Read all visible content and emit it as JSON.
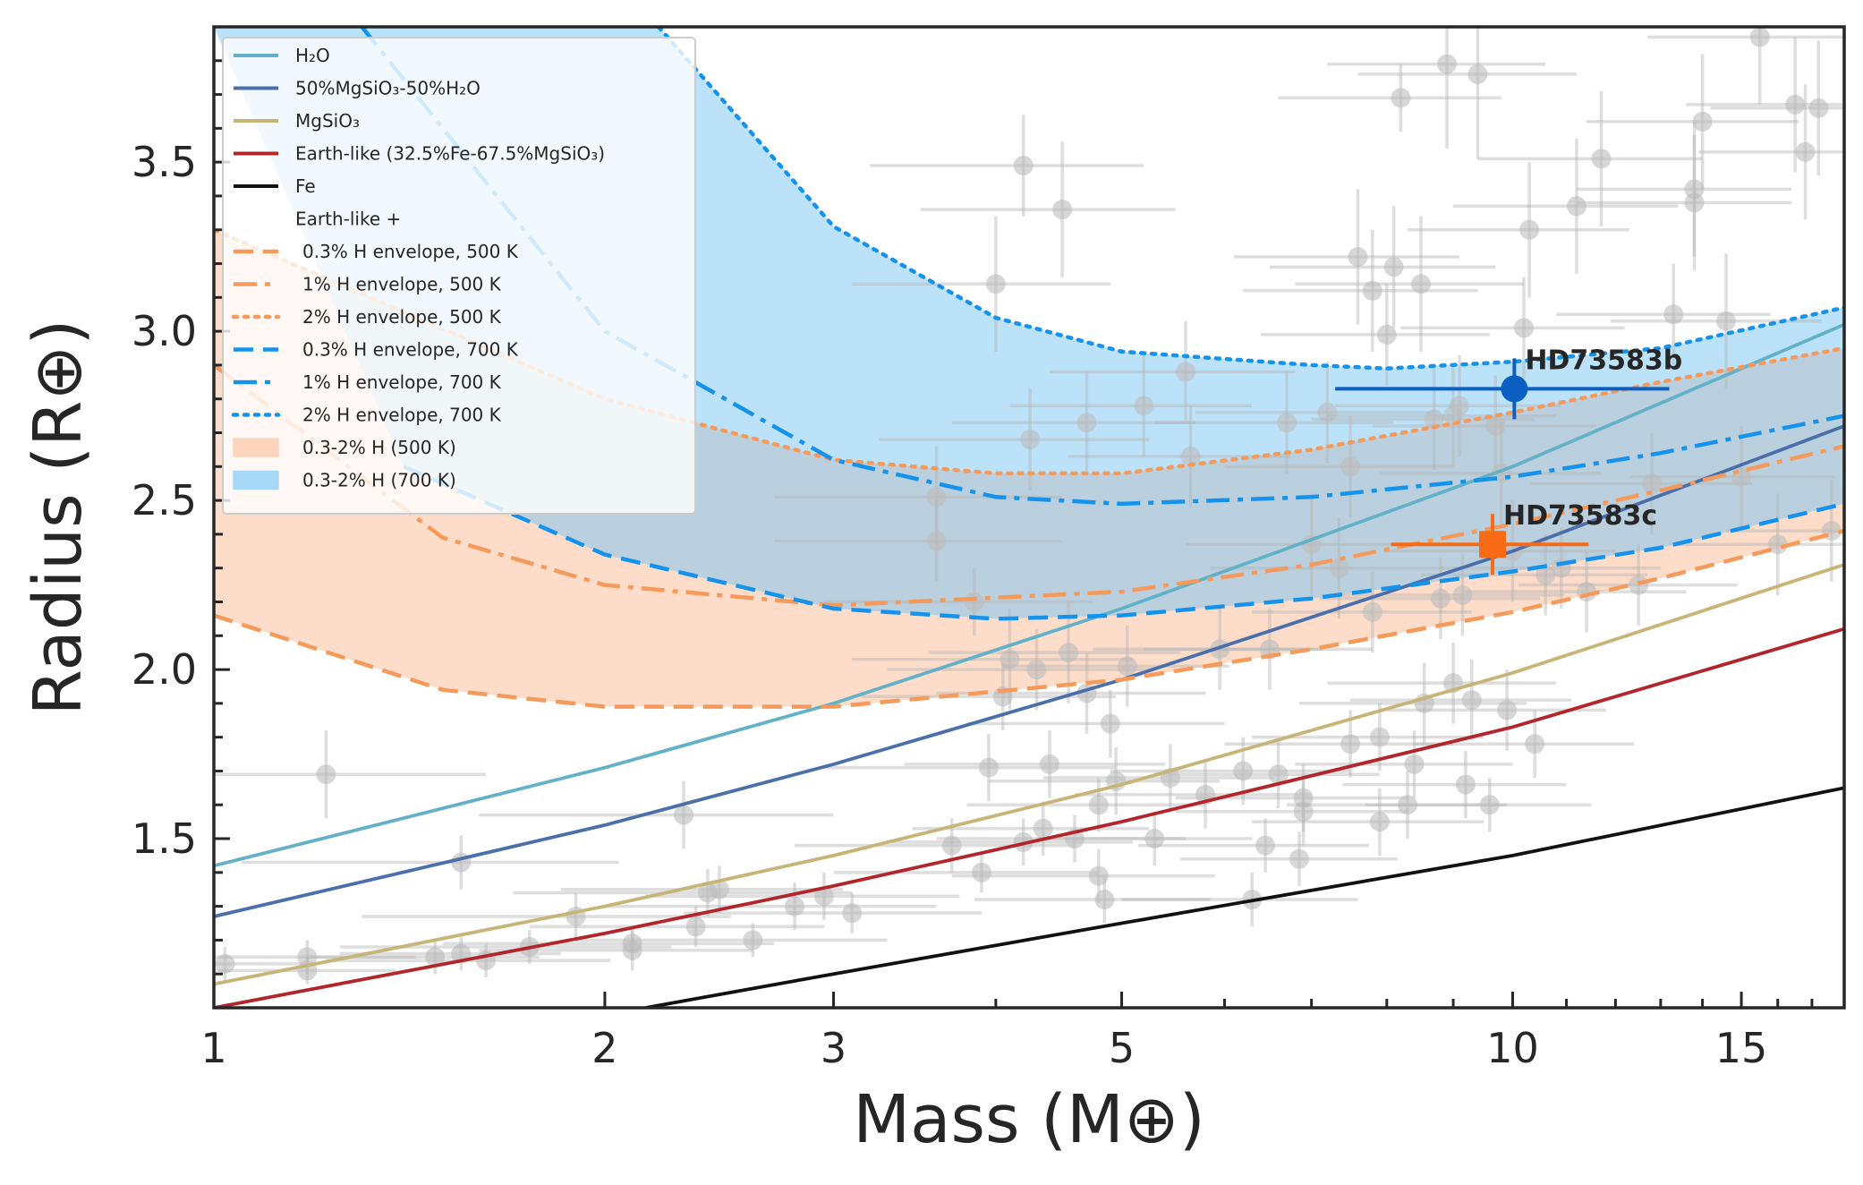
{
  "chart_data": {
    "type": "scatter",
    "title": "",
    "xlabel": "Mass (M⊕)",
    "ylabel": "Radius (R⊕)",
    "xscale": "log",
    "xlim": [
      1,
      18
    ],
    "ylim": [
      1.0,
      3.9
    ],
    "xticks": [
      {
        "value": 1,
        "label": "1"
      },
      {
        "value": 2,
        "label": "2"
      },
      {
        "value": 3,
        "label": "3"
      },
      {
        "value": 5,
        "label": "5"
      },
      {
        "value": 10,
        "label": "10"
      },
      {
        "value": 15,
        "label": "15"
      }
    ],
    "yticks": [
      {
        "value": 1.5,
        "label": "1.5"
      },
      {
        "value": 2.0,
        "label": "2.0"
      },
      {
        "value": 2.5,
        "label": "2.5"
      },
      {
        "value": 3.0,
        "label": "3.0"
      },
      {
        "value": 3.5,
        "label": "3.5"
      }
    ],
    "legend_position": "top-left",
    "legend": [
      {
        "label": "H₂O",
        "color": "#62b1c8",
        "style": "solid"
      },
      {
        "label": "50%MgSiO₃-50%H₂O",
        "color": "#4a6fab",
        "style": "solid"
      },
      {
        "label": "MgSiO₃",
        "color": "#c7b577",
        "style": "solid"
      },
      {
        "label": "Earth-like (32.5%Fe-67.5%MgSiO₃)",
        "color": "#b2262b",
        "style": "solid"
      },
      {
        "label": "Fe",
        "color": "#111111",
        "style": "solid"
      },
      {
        "label": "Earth-like +",
        "color": "",
        "style": "none"
      },
      {
        "label": "0.3% H envelope, 500 K",
        "color": "#f59a5b",
        "style": "dashed"
      },
      {
        "label": "1% H envelope, 500 K",
        "color": "#f59a5b",
        "style": "dashdot"
      },
      {
        "label": "2% H envelope, 500 K",
        "color": "#f59a5b",
        "style": "dotted"
      },
      {
        "label": "0.3% H envelope, 700 K",
        "color": "#1593ec",
        "style": "dashed"
      },
      {
        "label": "1% H envelope, 700 K",
        "color": "#1593ec",
        "style": "dashdot"
      },
      {
        "label": "2% H envelope, 700 K",
        "color": "#1593ec",
        "style": "dotted"
      },
      {
        "label": "0.3-2% H (500 K)",
        "color": "#fdd5bd",
        "style": "patch"
      },
      {
        "label": "0.3-2% H (700 K)",
        "color": "#a8d8f8",
        "style": "patch"
      }
    ],
    "composition_curves": [
      {
        "name": "H2O",
        "color": "#62b1c8",
        "x": [
          1,
          2,
          3,
          5,
          10,
          18
        ],
        "y": [
          1.42,
          1.71,
          1.9,
          2.18,
          2.6,
          3.02
        ]
      },
      {
        "name": "50%MgSiO3-50%H2O",
        "color": "#4a6fab",
        "x": [
          1,
          2,
          3,
          5,
          10,
          18
        ],
        "y": [
          1.27,
          1.54,
          1.72,
          1.97,
          2.35,
          2.72
        ]
      },
      {
        "name": "MgSiO3",
        "color": "#c7b577",
        "x": [
          1,
          2,
          3,
          5,
          10,
          18
        ],
        "y": [
          1.07,
          1.3,
          1.45,
          1.66,
          1.99,
          2.31
        ]
      },
      {
        "name": "Earth-like",
        "color": "#b2262b",
        "x": [
          1,
          2,
          3,
          5,
          10,
          18
        ],
        "y": [
          1.0,
          1.22,
          1.36,
          1.55,
          1.83,
          2.12
        ]
      },
      {
        "name": "Fe",
        "color": "#111111",
        "x": [
          2.15,
          3,
          5,
          10,
          18
        ],
        "y": [
          1.0,
          1.1,
          1.25,
          1.45,
          1.65
        ]
      }
    ],
    "envelope_curves": [
      {
        "name": "0.3% H 500 K",
        "color": "#f59a5b",
        "style": "dashed",
        "x": [
          1,
          1.5,
          2,
          3,
          5,
          7,
          10,
          13,
          18
        ],
        "y": [
          2.16,
          1.94,
          1.89,
          1.89,
          1.97,
          2.06,
          2.17,
          2.27,
          2.41
        ]
      },
      {
        "name": "1% H 500 K",
        "color": "#f59a5b",
        "style": "dashdot",
        "x": [
          1,
          1.5,
          2,
          3,
          5,
          7,
          10,
          13,
          18
        ],
        "y": [
          2.9,
          2.39,
          2.25,
          2.19,
          2.23,
          2.31,
          2.43,
          2.53,
          2.66
        ]
      },
      {
        "name": "2% H 500 K",
        "color": "#f59a5b",
        "style": "dotted",
        "x": [
          1,
          2,
          3,
          4,
          5,
          7,
          10,
          13,
          18
        ],
        "y": [
          3.3,
          2.8,
          2.62,
          2.58,
          2.58,
          2.65,
          2.76,
          2.85,
          2.95
        ]
      },
      {
        "name": "0.3% H 700 K",
        "color": "#1593ec",
        "style": "dashed",
        "x": [
          1.4,
          2,
          3,
          4,
          5,
          7,
          10,
          13,
          18
        ],
        "y": [
          2.6,
          2.34,
          2.18,
          2.15,
          2.16,
          2.21,
          2.29,
          2.36,
          2.49
        ]
      },
      {
        "name": "1% H 700 K",
        "color": "#1593ec",
        "style": "dashdot",
        "x": [
          1.3,
          2,
          3,
          4,
          5,
          7,
          10,
          13,
          18
        ],
        "y": [
          3.9,
          3.0,
          2.62,
          2.51,
          2.49,
          2.51,
          2.57,
          2.64,
          2.75
        ]
      },
      {
        "name": "2% H 700 K",
        "color": "#1593ec",
        "style": "dotted",
        "x": [
          2.2,
          3,
          4,
          5,
          7,
          8,
          10,
          13,
          18
        ],
        "y": [
          3.9,
          3.31,
          3.04,
          2.94,
          2.9,
          2.89,
          2.91,
          2.95,
          3.07
        ]
      }
    ],
    "comparison_planets": [
      {
        "m": 1.02,
        "r": 1.13,
        "em": 0.15,
        "er": 0.05
      },
      {
        "m": 1.18,
        "r": 1.15,
        "em": 0.25,
        "er": 0.05
      },
      {
        "m": 1.18,
        "r": 1.11,
        "em": 0.2,
        "er": 0.04
      },
      {
        "m": 1.22,
        "r": 1.69,
        "em": 0.4,
        "er": 0.13
      },
      {
        "m": 1.48,
        "r": 1.15,
        "em": 0.3,
        "er": 0.05
      },
      {
        "m": 1.55,
        "r": 1.16,
        "em": 0.3,
        "er": 0.05
      },
      {
        "m": 1.55,
        "r": 1.43,
        "em": 0.5,
        "er": 0.08
      },
      {
        "m": 1.62,
        "r": 1.14,
        "em": 0.4,
        "er": 0.05
      },
      {
        "m": 1.75,
        "r": 1.18,
        "em": 0.5,
        "er": 0.05
      },
      {
        "m": 1.9,
        "r": 1.27,
        "em": 0.6,
        "er": 0.07
      },
      {
        "m": 2.1,
        "r": 1.19,
        "em": 0.6,
        "er": 0.05
      },
      {
        "m": 2.1,
        "r": 1.17,
        "em": 0.5,
        "er": 0.06
      },
      {
        "m": 2.3,
        "r": 1.57,
        "em": 0.7,
        "er": 0.1
      },
      {
        "m": 2.35,
        "r": 1.24,
        "em": 0.6,
        "er": 0.06
      },
      {
        "m": 2.4,
        "r": 1.34,
        "em": 0.7,
        "er": 0.07
      },
      {
        "m": 2.45,
        "r": 1.35,
        "em": 0.6,
        "er": 0.07
      },
      {
        "m": 2.6,
        "r": 1.2,
        "em": 0.7,
        "er": 0.05
      },
      {
        "m": 2.8,
        "r": 1.3,
        "em": 0.8,
        "er": 0.07
      },
      {
        "m": 2.95,
        "r": 1.33,
        "em": 0.8,
        "er": 0.07
      },
      {
        "m": 3.1,
        "r": 1.28,
        "em": 0.8,
        "er": 0.06
      },
      {
        "m": 3.6,
        "r": 2.51,
        "em": 0.9,
        "er": 0.15
      },
      {
        "m": 3.6,
        "r": 2.38,
        "em": 0.9,
        "er": 0.12
      },
      {
        "m": 3.7,
        "r": 1.48,
        "em": 0.9,
        "er": 0.08
      },
      {
        "m": 3.85,
        "r": 2.2,
        "em": 0.9,
        "er": 0.1
      },
      {
        "m": 3.9,
        "r": 1.4,
        "em": 0.9,
        "er": 0.06
      },
      {
        "m": 3.95,
        "r": 1.71,
        "em": 1.0,
        "er": 0.1
      },
      {
        "m": 4.0,
        "r": 3.14,
        "em": 0.9,
        "er": 0.2
      },
      {
        "m": 4.05,
        "r": 1.92,
        "em": 0.9,
        "er": 0.1
      },
      {
        "m": 4.1,
        "r": 2.03,
        "em": 1.0,
        "er": 0.15
      },
      {
        "m": 4.2,
        "r": 3.49,
        "em": 1.0,
        "er": 0.15
      },
      {
        "m": 4.2,
        "r": 1.49,
        "em": 0.9,
        "er": 0.07
      },
      {
        "m": 4.25,
        "r": 2.68,
        "em": 1.0,
        "er": 0.15
      },
      {
        "m": 4.3,
        "r": 2.0,
        "em": 1.0,
        "er": 0.12
      },
      {
        "m": 4.35,
        "r": 1.53,
        "em": 0.9,
        "er": 0.08
      },
      {
        "m": 4.4,
        "r": 1.72,
        "em": 1.0,
        "er": 0.1
      },
      {
        "m": 4.5,
        "r": 3.36,
        "em": 1.0,
        "er": 0.2
      },
      {
        "m": 4.55,
        "r": 2.05,
        "em": 1.0,
        "er": 0.15
      },
      {
        "m": 4.6,
        "r": 1.5,
        "em": 1.0,
        "er": 0.07
      },
      {
        "m": 4.7,
        "r": 2.73,
        "em": 1.0,
        "er": 0.15
      },
      {
        "m": 4.7,
        "r": 1.93,
        "em": 1.1,
        "er": 0.12
      },
      {
        "m": 4.8,
        "r": 1.6,
        "em": 1.0,
        "er": 0.08
      },
      {
        "m": 4.8,
        "r": 1.39,
        "em": 1.1,
        "er": 0.08
      },
      {
        "m": 4.85,
        "r": 1.32,
        "em": 1.0,
        "er": 0.07
      },
      {
        "m": 4.9,
        "r": 1.84,
        "em": 1.1,
        "er": 0.1
      },
      {
        "m": 4.95,
        "r": 1.67,
        "em": 1.0,
        "er": 0.1
      },
      {
        "m": 5.05,
        "r": 2.01,
        "em": 1.0,
        "er": 0.12
      },
      {
        "m": 5.2,
        "r": 2.78,
        "em": 1.1,
        "er": 0.15
      },
      {
        "m": 5.3,
        "r": 1.5,
        "em": 1.0,
        "er": 0.08
      },
      {
        "m": 5.45,
        "r": 1.68,
        "em": 1.1,
        "er": 0.1
      },
      {
        "m": 5.6,
        "r": 2.88,
        "em": 1.2,
        "er": 0.15
      },
      {
        "m": 5.65,
        "r": 2.63,
        "em": 1.1,
        "er": 0.15
      },
      {
        "m": 5.8,
        "r": 1.63,
        "em": 1.2,
        "er": 0.1
      },
      {
        "m": 5.95,
        "r": 2.06,
        "em": 1.2,
        "er": 0.12
      },
      {
        "m": 6.2,
        "r": 1.7,
        "em": 1.3,
        "er": 0.1
      },
      {
        "m": 6.3,
        "r": 1.32,
        "em": 1.3,
        "er": 0.08
      },
      {
        "m": 6.45,
        "r": 1.48,
        "em": 1.3,
        "er": 0.08
      },
      {
        "m": 6.5,
        "r": 2.06,
        "em": 1.3,
        "er": 0.12
      },
      {
        "m": 6.6,
        "r": 1.69,
        "em": 1.3,
        "er": 0.1
      },
      {
        "m": 6.7,
        "r": 2.73,
        "em": 1.4,
        "er": 0.15
      },
      {
        "m": 6.85,
        "r": 1.44,
        "em": 1.3,
        "er": 0.08
      },
      {
        "m": 6.9,
        "r": 1.58,
        "em": 1.4,
        "er": 0.1
      },
      {
        "m": 6.9,
        "r": 1.62,
        "em": 1.4,
        "er": 0.1
      },
      {
        "m": 7.0,
        "r": 2.37,
        "em": 1.4,
        "er": 0.15
      },
      {
        "m": 7.2,
        "r": 2.76,
        "em": 1.5,
        "er": 0.15
      },
      {
        "m": 7.35,
        "r": 2.3,
        "em": 1.5,
        "er": 0.15
      },
      {
        "m": 7.5,
        "r": 2.6,
        "em": 1.5,
        "er": 0.15
      },
      {
        "m": 7.5,
        "r": 1.78,
        "em": 1.5,
        "er": 0.1
      },
      {
        "m": 7.6,
        "r": 3.22,
        "em": 1.5,
        "er": 0.2
      },
      {
        "m": 7.8,
        "r": 3.12,
        "em": 1.6,
        "er": 0.18
      },
      {
        "m": 7.8,
        "r": 2.17,
        "em": 1.5,
        "er": 0.12
      },
      {
        "m": 7.9,
        "r": 1.8,
        "em": 1.6,
        "er": 0.1
      },
      {
        "m": 7.9,
        "r": 1.55,
        "em": 1.6,
        "er": 0.1
      },
      {
        "m": 8.0,
        "r": 2.99,
        "em": 1.6,
        "er": 0.15
      },
      {
        "m": 8.1,
        "r": 3.19,
        "em": 1.6,
        "er": 0.18
      },
      {
        "m": 8.2,
        "r": 3.69,
        "em": 1.6,
        "er": 0.1
      },
      {
        "m": 8.3,
        "r": 1.6,
        "em": 1.6,
        "er": 0.1
      },
      {
        "m": 8.4,
        "r": 1.72,
        "em": 1.6,
        "er": 0.1
      },
      {
        "m": 8.5,
        "r": 3.14,
        "em": 1.7,
        "er": 0.2
      },
      {
        "m": 8.55,
        "r": 1.9,
        "em": 1.7,
        "er": 0.12
      },
      {
        "m": 8.7,
        "r": 2.74,
        "em": 1.7,
        "er": 0.15
      },
      {
        "m": 8.8,
        "r": 2.21,
        "em": 1.7,
        "er": 0.12
      },
      {
        "m": 8.9,
        "r": 3.79,
        "em": 1.7,
        "er": 0.25
      },
      {
        "m": 9.0,
        "r": 1.96,
        "em": 1.8,
        "er": 0.12
      },
      {
        "m": 9.0,
        "r": 2.75,
        "em": 1.8,
        "er": 0.15
      },
      {
        "m": 9.1,
        "r": 2.78,
        "em": 1.8,
        "er": 0.15
      },
      {
        "m": 9.15,
        "r": 2.22,
        "em": 1.8,
        "er": 0.12
      },
      {
        "m": 9.2,
        "r": 1.66,
        "em": 1.8,
        "er": 0.1
      },
      {
        "m": 9.3,
        "r": 1.91,
        "em": 1.8,
        "er": 0.12
      },
      {
        "m": 9.4,
        "r": 3.76,
        "em": 1.8,
        "er": 0.25
      },
      {
        "m": 9.6,
        "r": 1.6,
        "em": 1.9,
        "er": 0.08
      },
      {
        "m": 9.7,
        "r": 2.72,
        "em": 1.9,
        "er": 0.15
      },
      {
        "m": 9.8,
        "r": 2.58,
        "em": 1.9,
        "er": 0.15
      },
      {
        "m": 9.9,
        "r": 1.88,
        "em": 1.9,
        "er": 0.12
      },
      {
        "m": 10.0,
        "r": 2.35,
        "em": 2.0,
        "er": 0.15
      },
      {
        "m": 10.2,
        "r": 3.01,
        "em": 2.0,
        "er": 0.15
      },
      {
        "m": 10.3,
        "r": 3.3,
        "em": 2.0,
        "er": 0.2
      },
      {
        "m": 10.4,
        "r": 1.78,
        "em": 2.0,
        "er": 0.1
      },
      {
        "m": 10.6,
        "r": 2.28,
        "em": 2.1,
        "er": 0.12
      },
      {
        "m": 10.9,
        "r": 2.3,
        "em": 2.1,
        "er": 0.12
      },
      {
        "m": 11.2,
        "r": 3.37,
        "em": 2.2,
        "er": 0.2
      },
      {
        "m": 11.4,
        "r": 2.23,
        "em": 2.2,
        "er": 0.12
      },
      {
        "m": 11.7,
        "r": 3.51,
        "em": 2.3,
        "er": 0.2
      },
      {
        "m": 12.5,
        "r": 2.25,
        "em": 2.4,
        "er": 0.12
      },
      {
        "m": 12.8,
        "r": 2.55,
        "em": 2.5,
        "er": 0.15
      },
      {
        "m": 13.3,
        "r": 3.05,
        "em": 2.5,
        "er": 0.15
      },
      {
        "m": 13.8,
        "r": 3.42,
        "em": 2.6,
        "er": 0.2
      },
      {
        "m": 13.8,
        "r": 3.38,
        "em": 2.6,
        "er": 0.2
      },
      {
        "m": 14.0,
        "r": 3.62,
        "em": 2.6,
        "er": 0.2
      },
      {
        "m": 14.6,
        "r": 3.03,
        "em": 2.7,
        "er": 0.2
      },
      {
        "m": 15.0,
        "r": 2.57,
        "em": 2.7,
        "er": 0.15
      },
      {
        "m": 15.5,
        "r": 3.87,
        "em": 2.8,
        "er": 0.2
      },
      {
        "m": 16.0,
        "r": 2.37,
        "em": 2.8,
        "er": 0.15
      },
      {
        "m": 16.5,
        "r": 3.67,
        "em": 2.9,
        "er": 0.2
      },
      {
        "m": 16.8,
        "r": 3.53,
        "em": 2.9,
        "er": 0.2
      },
      {
        "m": 17.2,
        "r": 3.66,
        "em": 3.0,
        "er": 0.2
      },
      {
        "m": 17.6,
        "r": 2.41,
        "em": 3.0,
        "er": 0.15
      }
    ],
    "highlight_planets": [
      {
        "name": "HD73583b",
        "label": "HD73583b",
        "color": "#0b5fc2",
        "marker": "circle",
        "m": 10.03,
        "r": 2.83,
        "em_low": 2.73,
        "em_high": 3.17,
        "er": 0.09
      },
      {
        "name": "HD73583c",
        "label": "HD73583c",
        "color": "#f86a13",
        "marker": "square",
        "m": 9.65,
        "r": 2.37,
        "em_low": 1.59,
        "em_high": 1.79,
        "er": 0.09
      }
    ]
  }
}
